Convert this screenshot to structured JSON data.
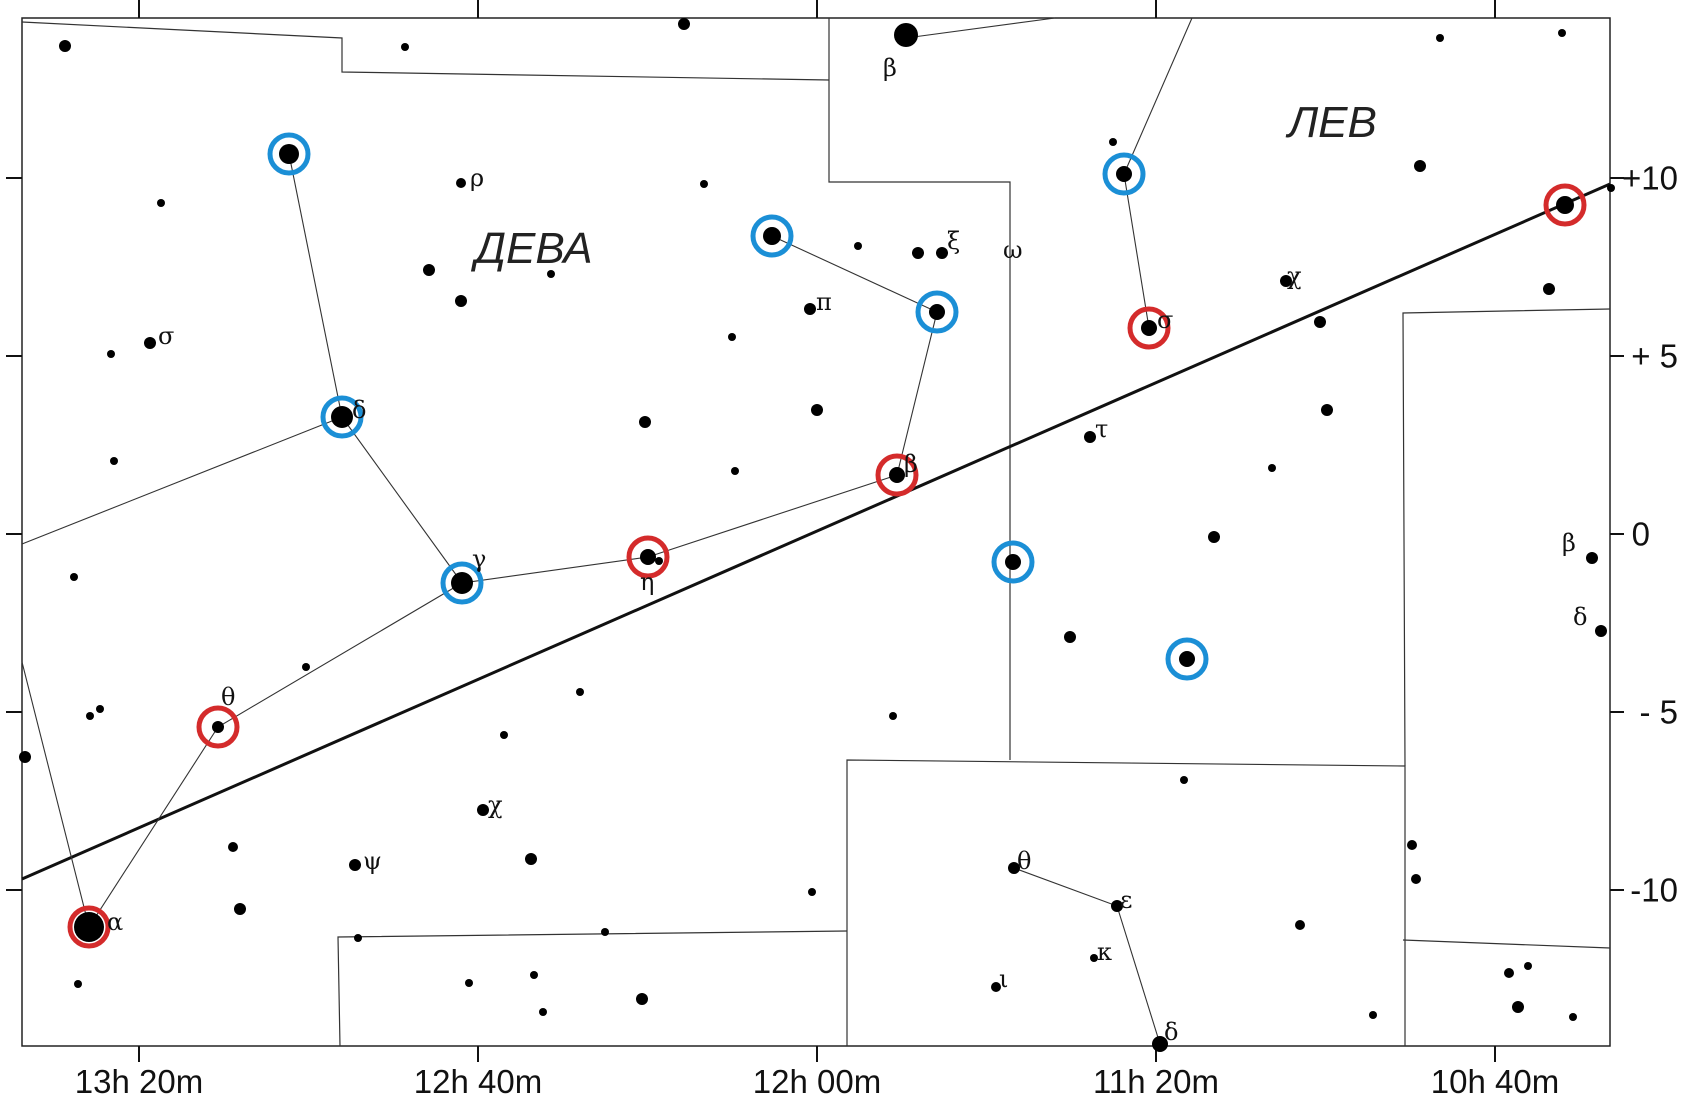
{
  "map": {
    "constellations": [
      {
        "id": "virgo",
        "name": "ДЕВА"
      },
      {
        "id": "leo",
        "name": "ЛЕВ"
      }
    ],
    "ra_axis_labels": [
      "13h 20m",
      "12h 40m",
      "12h 00m",
      "11h 20m",
      "10h 40m"
    ],
    "dec_axis_labels": [
      "+10",
      "+ 5",
      "0",
      "- 5",
      "-10"
    ],
    "star_labels": [
      {
        "id": "rho",
        "text": "ρ"
      },
      {
        "id": "sigma",
        "text": "σ"
      },
      {
        "id": "delta-vir",
        "text": "δ"
      },
      {
        "id": "gamma",
        "text": "γ"
      },
      {
        "id": "eta",
        "text": "η"
      },
      {
        "id": "theta-vir",
        "text": "θ"
      },
      {
        "id": "alpha",
        "text": "α"
      },
      {
        "id": "chi-vir",
        "text": "χ"
      },
      {
        "id": "psi",
        "text": "ψ"
      },
      {
        "id": "pi",
        "text": "π"
      },
      {
        "id": "xi",
        "text": "ξ"
      },
      {
        "id": "omega",
        "text": "ω"
      },
      {
        "id": "beta-vir",
        "text": "β"
      },
      {
        "id": "beta-leo",
        "text": "β"
      },
      {
        "id": "tau",
        "text": "τ"
      },
      {
        "id": "chi-leo",
        "text": "χ"
      },
      {
        "id": "sigma-leo",
        "text": "σ"
      },
      {
        "id": "beta-sex",
        "text": "β"
      },
      {
        "id": "delta-sex",
        "text": "δ"
      },
      {
        "id": "theta-crt",
        "text": "θ"
      },
      {
        "id": "epsilon-crt",
        "text": "ε"
      },
      {
        "id": "kappa-crt",
        "text": "κ"
      },
      {
        "id": "iota-crt",
        "text": "ι"
      },
      {
        "id": "delta-crt",
        "text": "δ"
      }
    ],
    "marker_colors": {
      "red": "#d42b2b",
      "blue": "#1b8fd6"
    }
  }
}
